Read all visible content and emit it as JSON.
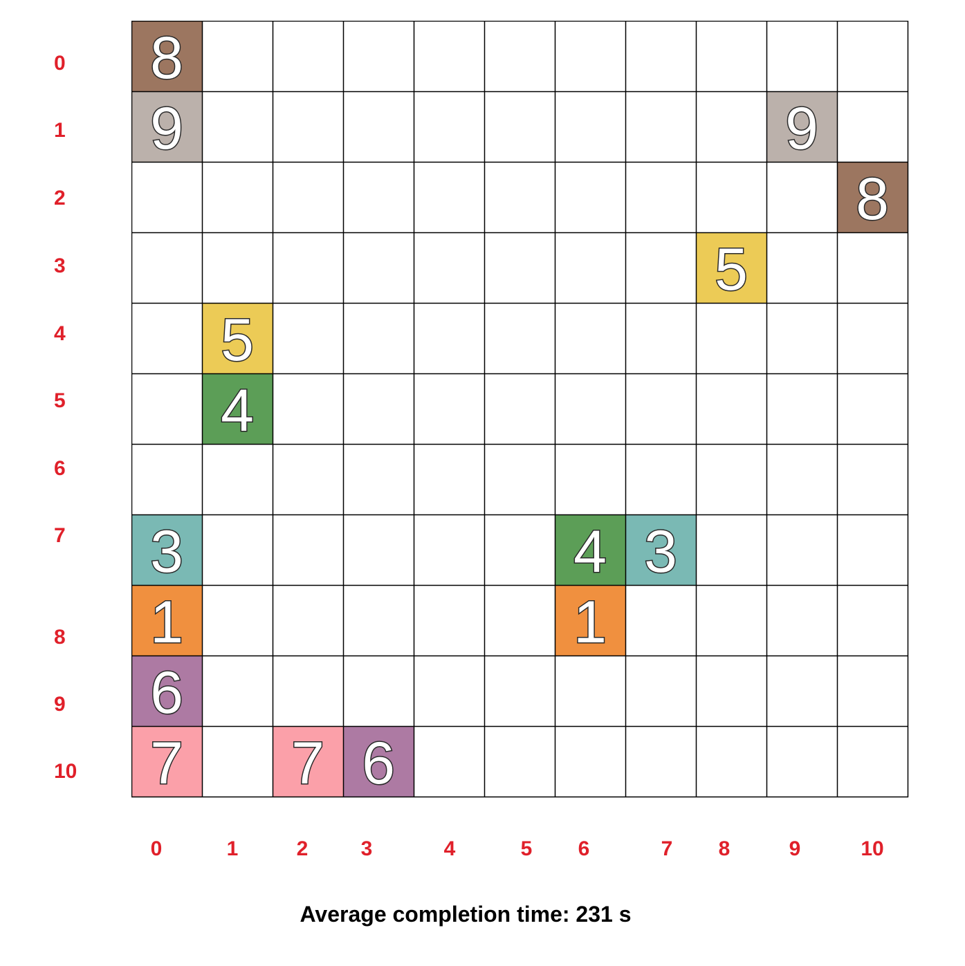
{
  "grid": {
    "rows": 11,
    "cols": 11,
    "row_labels": [
      "0",
      "1",
      "2",
      "3",
      "4",
      "5",
      "6",
      "7",
      "8",
      "9",
      "10"
    ],
    "col_labels": [
      "0",
      "1",
      "2",
      "3",
      "4",
      "5",
      "6",
      "7",
      "8",
      "9",
      "10"
    ],
    "line_color": "#000000",
    "cells": [
      {
        "row": 0,
        "col": 0,
        "value": "8",
        "color": "#9c7660"
      },
      {
        "row": 1,
        "col": 0,
        "value": "9",
        "color": "#bbb1ab"
      },
      {
        "row": 1,
        "col": 9,
        "value": "9",
        "color": "#bbb1ab"
      },
      {
        "row": 2,
        "col": 10,
        "value": "8",
        "color": "#9c7660"
      },
      {
        "row": 3,
        "col": 8,
        "value": "5",
        "color": "#eccb56"
      },
      {
        "row": 4,
        "col": 1,
        "value": "5",
        "color": "#eccb56"
      },
      {
        "row": 5,
        "col": 1,
        "value": "4",
        "color": "#5c9e57"
      },
      {
        "row": 7,
        "col": 0,
        "value": "3",
        "color": "#7ab9b4"
      },
      {
        "row": 7,
        "col": 6,
        "value": "4",
        "color": "#5c9e57"
      },
      {
        "row": 7,
        "col": 7,
        "value": "3",
        "color": "#7ab9b4"
      },
      {
        "row": 8,
        "col": 0,
        "value": "1",
        "color": "#f0903f"
      },
      {
        "row": 8,
        "col": 6,
        "value": "1",
        "color": "#f0903f"
      },
      {
        "row": 9,
        "col": 0,
        "value": "6",
        "color": "#ad7aa3"
      },
      {
        "row": 10,
        "col": 0,
        "value": "7",
        "color": "#fba0a9"
      },
      {
        "row": 10,
        "col": 2,
        "value": "7",
        "color": "#fba0a9"
      },
      {
        "row": 10,
        "col": 3,
        "value": "6",
        "color": "#ad7aa3"
      }
    ]
  },
  "footer": {
    "text": "Average completion time: 231 s"
  }
}
